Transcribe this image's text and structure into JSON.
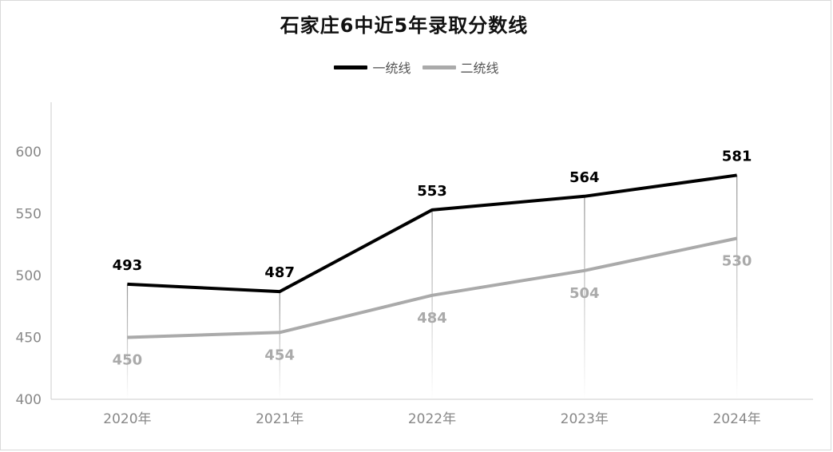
{
  "chart_data": {
    "type": "line",
    "title": "石家庄6中近5年录取分数线",
    "categories": [
      "2020年",
      "2021年",
      "2022年",
      "2023年",
      "2024年"
    ],
    "series": [
      {
        "name": "一统线",
        "values": [
          493,
          487,
          553,
          564,
          581
        ],
        "color": "#000000"
      },
      {
        "name": "二统线",
        "values": [
          450,
          454,
          484,
          504,
          530
        ],
        "color": "#aaaaaa"
      }
    ],
    "ylim": [
      400,
      640
    ],
    "yticks": [
      400,
      450,
      500,
      550,
      600
    ],
    "xlabel": "",
    "ylabel": "",
    "legend": "top-center",
    "data_labels": true,
    "drop_lines": true
  }
}
